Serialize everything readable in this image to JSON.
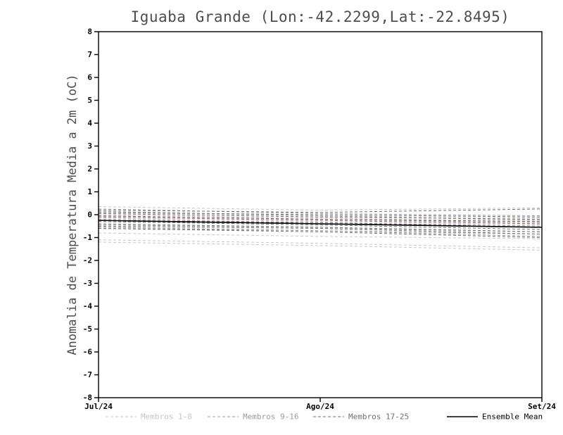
{
  "chart_data": {
    "type": "line",
    "title": "Iguaba Grande (Lon:-42.2299,Lat:-22.8495)",
    "ylabel": "Anomalia de Temperatura Media a 2m (oC)",
    "xlabel": "",
    "x_tick_labels": [
      "Jul/24",
      "Ago/24",
      "Set/24"
    ],
    "ylim": [
      -8,
      8
    ],
    "y_tick_step": 1,
    "grid": false,
    "legend_position": "bottom",
    "legend": [
      {
        "label": "Membros 1-8",
        "color": "#c6c6c6",
        "dash": "4,3",
        "width": 1
      },
      {
        "label": "Membros 9-16",
        "color": "#9b9b9b",
        "dash": "4,3",
        "width": 1
      },
      {
        "label": "Membros 17-25",
        "color": "#6f6f6f",
        "dash": "4,3",
        "width": 1
      },
      {
        "label": "Ensemble Mean",
        "color": "#000000",
        "dash": "",
        "width": 1.6
      }
    ],
    "groups": [
      {
        "name": "Membros 1-8",
        "color": "#c6c6c6",
        "dash": "4,3",
        "width": 1,
        "members": [
          [
            0.35,
            0.2,
            0.3
          ],
          [
            0.1,
            -0.05,
            -0.15
          ],
          [
            -0.15,
            -0.3,
            -0.45
          ],
          [
            -0.5,
            -0.6,
            -0.75
          ],
          [
            -0.8,
            -0.95,
            -1.05
          ],
          [
            -1.1,
            -1.25,
            -1.45
          ],
          [
            -1.2,
            -1.35,
            -1.55
          ],
          [
            0.0,
            -0.15,
            -0.3
          ]
        ]
      },
      {
        "name": "Membros 9-16",
        "color": "#9b9b9b",
        "dash": "4,3",
        "width": 1,
        "members": [
          [
            0.25,
            0.05,
            -0.05
          ],
          [
            -0.05,
            -0.2,
            -0.35
          ],
          [
            -0.3,
            -0.4,
            -0.55
          ],
          [
            -0.45,
            -0.55,
            -0.75
          ],
          [
            -0.6,
            -0.7,
            -0.85
          ],
          [
            -0.2,
            -0.35,
            -0.5
          ],
          [
            0.15,
            -0.05,
            -0.25
          ],
          [
            -0.55,
            -0.7,
            -0.95
          ]
        ]
      },
      {
        "name": "Membros 17-25",
        "color": "#6f6f6f",
        "dash": "4,3",
        "width": 1,
        "members": [
          [
            0.2,
            0.1,
            0.25
          ],
          [
            0.05,
            -0.1,
            -0.2
          ],
          [
            -0.1,
            -0.25,
            -0.4
          ],
          [
            -0.3,
            -0.45,
            -0.65
          ],
          [
            -0.4,
            -0.55,
            -0.75
          ],
          [
            -0.6,
            -0.75,
            -1.0
          ],
          [
            -0.25,
            -0.35,
            -0.55
          ],
          [
            -0.5,
            -0.6,
            -0.85
          ],
          [
            0.1,
            0.0,
            -0.1
          ]
        ]
      }
    ],
    "special_series": [
      {
        "name": "red-dashed-reference",
        "color": "#c04040",
        "dash": "4,3",
        "width": 1,
        "values": [
          -0.05,
          -0.2,
          -0.3
        ]
      },
      {
        "name": "ensemble-mean",
        "color": "#000000",
        "dash": "",
        "width": 1.6,
        "values": [
          -0.25,
          -0.4,
          -0.55
        ]
      }
    ]
  }
}
